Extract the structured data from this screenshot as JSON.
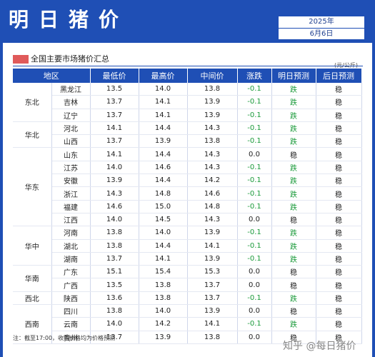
{
  "header": {
    "title": "明日猪价",
    "year": "2025年",
    "date": "6月6日"
  },
  "section": {
    "title": "全国主要市场猪价汇总",
    "unit": "(元/公斤)"
  },
  "columns": [
    "地区",
    "最低价",
    "最高价",
    "中间价",
    "涨跌",
    "明日预测",
    "后日预测"
  ],
  "rows": [
    {
      "region": "东北",
      "province": "黑龙江",
      "low": "13.5",
      "high": "14.0",
      "mid": "13.8",
      "change": "-0.1",
      "p1": "跌",
      "p2": "稳"
    },
    {
      "region": "",
      "province": "吉林",
      "low": "13.7",
      "high": "14.1",
      "mid": "13.9",
      "change": "-0.1",
      "p1": "跌",
      "p2": "稳"
    },
    {
      "region": "",
      "province": "辽宁",
      "low": "13.7",
      "high": "14.1",
      "mid": "13.9",
      "change": "-0.1",
      "p1": "跌",
      "p2": "稳"
    },
    {
      "region": "华北",
      "province": "河北",
      "low": "14.1",
      "high": "14.4",
      "mid": "14.3",
      "change": "-0.1",
      "p1": "跌",
      "p2": "稳"
    },
    {
      "region": "",
      "province": "山西",
      "low": "13.7",
      "high": "13.9",
      "mid": "13.8",
      "change": "-0.1",
      "p1": "跌",
      "p2": "稳"
    },
    {
      "region": "华东",
      "province": "山东",
      "low": "14.1",
      "high": "14.4",
      "mid": "14.3",
      "change": "0.0",
      "p1": "稳",
      "p2": "稳"
    },
    {
      "region": "",
      "province": "江苏",
      "low": "14.0",
      "high": "14.6",
      "mid": "14.3",
      "change": "-0.1",
      "p1": "跌",
      "p2": "稳"
    },
    {
      "region": "",
      "province": "安徽",
      "low": "13.9",
      "high": "14.4",
      "mid": "14.2",
      "change": "-0.1",
      "p1": "跌",
      "p2": "稳"
    },
    {
      "region": "",
      "province": "浙江",
      "low": "14.3",
      "high": "14.8",
      "mid": "14.6",
      "change": "-0.1",
      "p1": "跌",
      "p2": "稳"
    },
    {
      "region": "",
      "province": "福建",
      "low": "14.6",
      "high": "15.0",
      "mid": "14.8",
      "change": "-0.1",
      "p1": "跌",
      "p2": "稳"
    },
    {
      "region": "",
      "province": "江西",
      "low": "14.0",
      "high": "14.5",
      "mid": "14.3",
      "change": "0.0",
      "p1": "稳",
      "p2": "稳"
    },
    {
      "region": "华中",
      "province": "河南",
      "low": "13.8",
      "high": "14.0",
      "mid": "13.9",
      "change": "-0.1",
      "p1": "跌",
      "p2": "稳"
    },
    {
      "region": "",
      "province": "湖北",
      "low": "13.8",
      "high": "14.4",
      "mid": "14.1",
      "change": "-0.1",
      "p1": "跌",
      "p2": "稳"
    },
    {
      "region": "",
      "province": "湖南",
      "low": "13.7",
      "high": "14.1",
      "mid": "13.9",
      "change": "-0.1",
      "p1": "跌",
      "p2": "稳"
    },
    {
      "region": "华南",
      "province": "广东",
      "low": "15.1",
      "high": "15.4",
      "mid": "15.3",
      "change": "0.0",
      "p1": "稳",
      "p2": "稳"
    },
    {
      "region": "",
      "province": "广西",
      "low": "13.5",
      "high": "13.8",
      "mid": "13.7",
      "change": "0.0",
      "p1": "稳",
      "p2": "稳"
    },
    {
      "region": "西北",
      "province": "陕西",
      "low": "13.6",
      "high": "13.8",
      "mid": "13.7",
      "change": "-0.1",
      "p1": "跌",
      "p2": "稳"
    },
    {
      "region": "西南",
      "province": "四川",
      "low": "13.8",
      "high": "14.0",
      "mid": "13.9",
      "change": "0.0",
      "p1": "稳",
      "p2": "稳"
    },
    {
      "region": "",
      "province": "云南",
      "low": "14.0",
      "high": "14.2",
      "mid": "14.1",
      "change": "-0.1",
      "p1": "跌",
      "p2": "稳"
    },
    {
      "region": "",
      "province": "贵州",
      "low": "13.7",
      "high": "13.9",
      "mid": "13.8",
      "change": "0.0",
      "p1": "稳",
      "p2": "稳"
    }
  ],
  "note": "注：截至17:00，收购价格均为价格预测",
  "watermark": "知乎 @每日猪价",
  "colors": {
    "header_bg": "#1f4fb5",
    "down": "#1a9a3a",
    "marker": "#e05a5a"
  }
}
